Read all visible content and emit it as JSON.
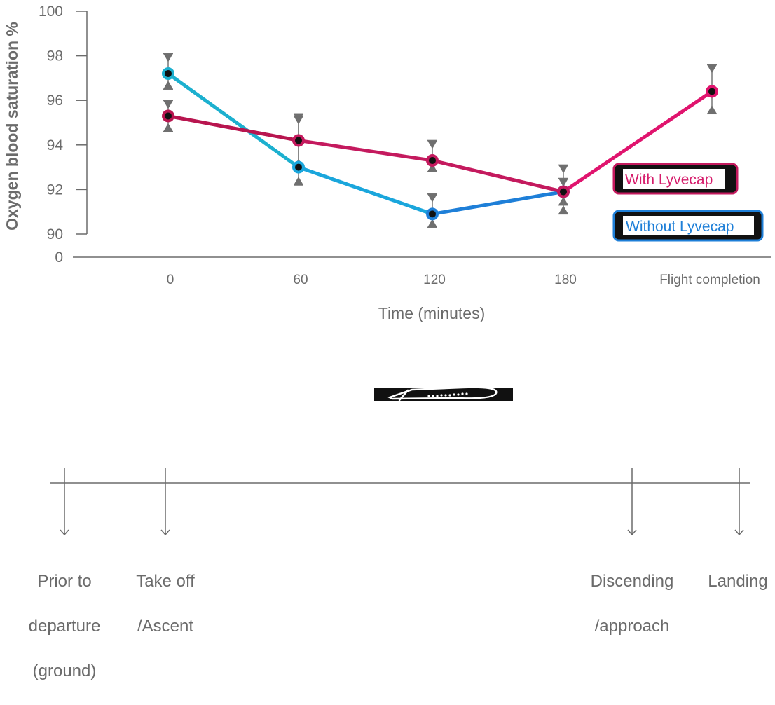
{
  "chart_data": {
    "type": "line",
    "xlabel": "Time (minutes)",
    "ylabel": "Oxygen blood saturation %",
    "categories": [
      "0",
      "60",
      "120",
      "180",
      "Flight completion"
    ],
    "y_ticks": [
      "100",
      "98",
      "96",
      "94",
      "92",
      "90",
      "0"
    ],
    "ylim": [
      90,
      100
    ],
    "axis_break": true,
    "grid": false,
    "legend_position": "right",
    "series": [
      {
        "name": "With Lyvecap",
        "color": "#c41a5e",
        "values": [
          95.3,
          94.2,
          93.3,
          91.9,
          96.4
        ],
        "error_high": [
          96.0,
          95.4,
          94.2,
          93.1,
          97.6
        ],
        "error_low": [
          94.6,
          93.0,
          92.8,
          91.3,
          95.4
        ]
      },
      {
        "name": "Without Lyvecap",
        "color": "#1e90d8",
        "values": [
          97.2,
          93.0,
          90.9,
          91.9,
          null
        ],
        "error_high": [
          98.1,
          95.3,
          91.8,
          92.5,
          null
        ],
        "error_low": [
          96.5,
          92.2,
          90.3,
          90.9,
          null
        ]
      }
    ]
  },
  "legend": {
    "with_label": "With Lyvecap",
    "without_label": "Without Lyvecap"
  },
  "timeline": {
    "icon": "airplane-icon",
    "phases": [
      {
        "line1": "Prior to",
        "line2": "departure",
        "line3": "(ground)"
      },
      {
        "line1": "Take off",
        "line2": "/Ascent",
        "line3": ""
      },
      {
        "line1": "Discending",
        "line2": "/approach",
        "line3": ""
      },
      {
        "line1": "Landing",
        "line2": "",
        "line3": ""
      }
    ]
  }
}
